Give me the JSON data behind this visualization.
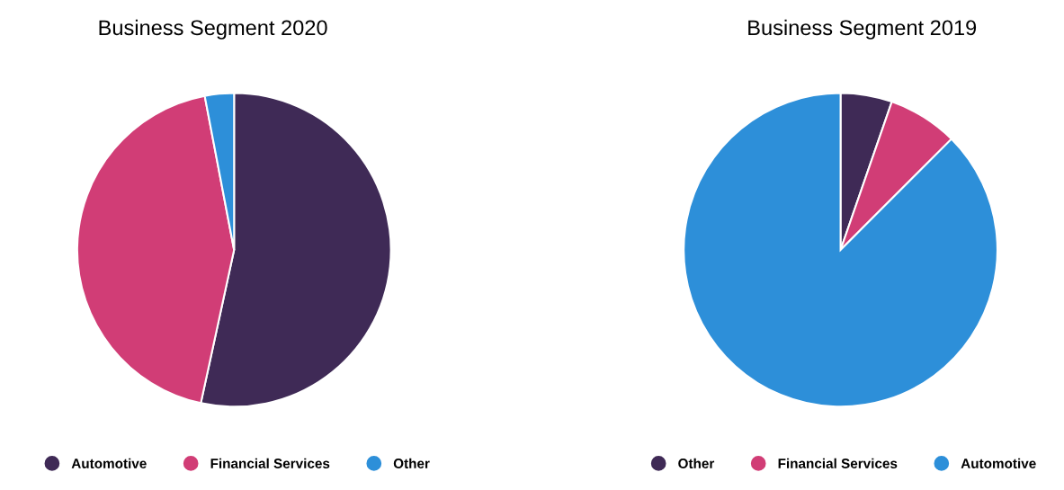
{
  "chart_data": [
    {
      "type": "pie",
      "title": "Business Segment 2020",
      "categories": [
        "Automotive",
        "Financial Services",
        "Other"
      ],
      "values": [
        53.4,
        43.6,
        3.0
      ],
      "colors": [
        "#3f2a56",
        "#d13d76",
        "#2d8fd9"
      ],
      "legend": "bottom"
    },
    {
      "type": "pie",
      "title": "Business Segment 2019",
      "categories": [
        "Other",
        "Financial Services",
        "Automotive"
      ],
      "values": [
        5.3,
        7.2,
        87.5
      ],
      "colors": [
        "#3f2a56",
        "#d13d76",
        "#2d8fd9"
      ],
      "legend": "bottom"
    }
  ]
}
